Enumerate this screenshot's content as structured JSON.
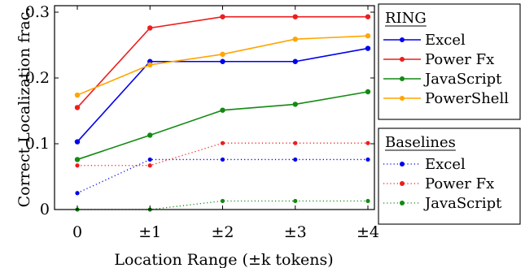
{
  "chart_data": {
    "type": "line",
    "x": [
      "0",
      "±1",
      "±2",
      "±3",
      "±4"
    ],
    "xlabel": "Location Range (±k tokens)",
    "ylabel": "Correct Localization frac.",
    "ylim": [
      0,
      0.3
    ],
    "yticks": [
      "0",
      "0.1",
      "0.2",
      "0.3"
    ],
    "grid": false,
    "legends": [
      {
        "title": "RING",
        "placement": "top-right",
        "series": [
          {
            "name": "Excel",
            "color": "#0000ee",
            "style": "solid",
            "values": [
              0.103,
              0.225,
              0.225,
              0.225,
              0.245
            ]
          },
          {
            "name": "Power Fx",
            "color": "#ee1c1c",
            "style": "solid",
            "values": [
              0.155,
              0.276,
              0.293,
              0.293,
              0.293
            ]
          },
          {
            "name": "JavaScript",
            "color": "#128a12",
            "style": "solid",
            "values": [
              0.076,
              0.113,
              0.151,
              0.16,
              0.179
            ]
          },
          {
            "name": "PowerShell",
            "color": "#ffa500",
            "style": "solid",
            "values": [
              0.174,
              0.22,
              0.236,
              0.259,
              0.264
            ]
          }
        ]
      },
      {
        "title": "Baselines",
        "placement": "right",
        "series": [
          {
            "name": "Excel",
            "color": "#0000ee",
            "style": "dotted",
            "values": [
              0.025,
              0.076,
              0.076,
              0.076,
              0.076
            ]
          },
          {
            "name": "Power Fx",
            "color": "#ee1c1c",
            "style": "dotted",
            "values": [
              0.067,
              0.067,
              0.101,
              0.101,
              0.101
            ]
          },
          {
            "name": "JavaScript",
            "color": "#128a12",
            "style": "dotted",
            "values": [
              0.0,
              0.0,
              0.013,
              0.013,
              0.013
            ]
          }
        ]
      }
    ]
  }
}
